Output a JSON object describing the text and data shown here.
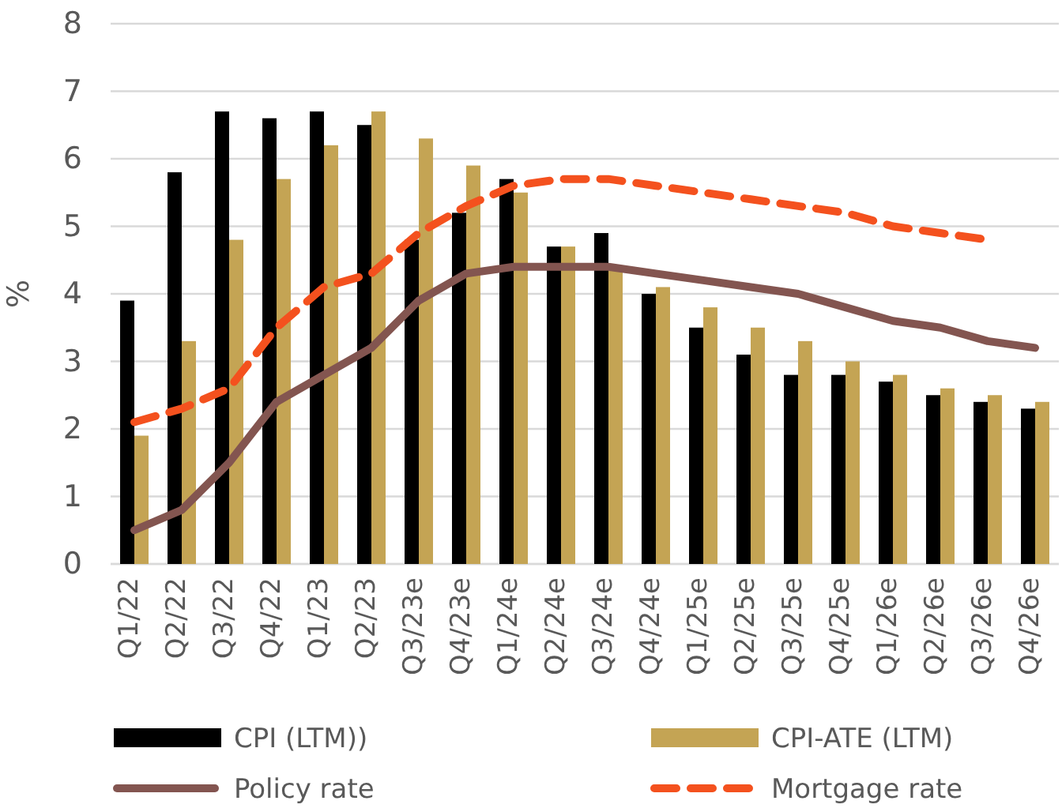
{
  "chart_data": {
    "type": "bar",
    "ylabel": "%",
    "categories": [
      "Q1/22",
      "Q2/22",
      "Q3/22",
      "Q4/22",
      "Q1/23",
      "Q2/23",
      "Q3/23e",
      "Q4/23e",
      "Q1/24e",
      "Q2/24e",
      "Q3/24e",
      "Q4/24e",
      "Q1/25e",
      "Q2/25e",
      "Q3/25e",
      "Q4/25e",
      "Q1/26e",
      "Q2/26e",
      "Q3/26e",
      "Q4/26e"
    ],
    "series": [
      {
        "name": "CPI (LTM))",
        "color": "#000000",
        "values": [
          3.9,
          5.8,
          6.7,
          6.6,
          6.7,
          6.5,
          4.8,
          5.2,
          5.7,
          4.7,
          4.9,
          4.0,
          3.5,
          3.1,
          2.8,
          2.8,
          2.7,
          2.5,
          2.4,
          2.3
        ]
      },
      {
        "name": "CPI-ATE (LTM)",
        "color": "#c4a454",
        "values": [
          1.9,
          3.3,
          4.8,
          5.7,
          6.2,
          6.7,
          6.3,
          5.9,
          5.5,
          4.7,
          4.4,
          4.1,
          3.8,
          3.5,
          3.3,
          3.0,
          2.8,
          2.6,
          2.5,
          2.4
        ]
      },
      {
        "name": "Policy rate",
        "type": "line",
        "color": "#835550",
        "line_style": "solid",
        "values": [
          0.5,
          0.8,
          1.5,
          2.4,
          2.8,
          3.2,
          3.9,
          4.3,
          4.4,
          4.4,
          4.4,
          4.3,
          4.2,
          4.1,
          4.0,
          3.8,
          3.6,
          3.5,
          3.3,
          3.2
        ]
      },
      {
        "name": "Mortgage rate",
        "type": "line",
        "color": "#f4511e",
        "line_style": "dashed",
        "values": [
          2.1,
          2.3,
          2.6,
          3.5,
          4.1,
          4.3,
          4.9,
          5.3,
          5.6,
          5.7,
          5.7,
          5.6,
          5.5,
          5.4,
          5.3,
          5.2,
          5.0,
          4.9,
          4.8,
          null
        ]
      }
    ],
    "ylim": [
      0,
      8
    ],
    "yticks": [
      0,
      1,
      2,
      3,
      4,
      5,
      6,
      7,
      8
    ],
    "grid": "y",
    "legend": "bottom",
    "marker": "none"
  }
}
